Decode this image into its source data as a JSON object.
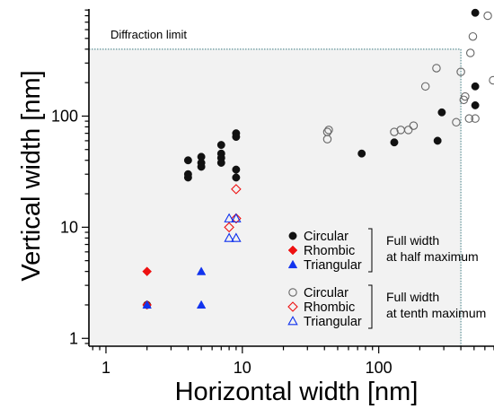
{
  "chart_data": {
    "type": "scatter",
    "xlabel": "Horizontal width [nm]",
    "ylabel": "Vertical width [nm]",
    "xscale": "log",
    "yscale": "log",
    "xlim": [
      0.75,
      700
    ],
    "ylim": [
      0.85,
      920
    ],
    "x_ticks": [
      1,
      10,
      100
    ],
    "x_tick_labels": [
      "1",
      "10",
      "100"
    ],
    "y_ticks": [
      1,
      10,
      100
    ],
    "y_tick_labels": [
      "1",
      "10",
      "100"
    ],
    "grid": false,
    "annotation": {
      "text": "Diffraction limit",
      "x_limit": 400,
      "y_limit": 400
    },
    "legend_groups": [
      {
        "label_line1": "Full width",
        "label_line2": "at half maximum"
      },
      {
        "label_line1": "Full width",
        "label_line2": "at tenth maximum"
      }
    ],
    "series": [
      {
        "name": "Circular",
        "group": 0,
        "marker": "circle",
        "filled": true,
        "color": "#111111",
        "points": [
          [
            2,
            2
          ],
          [
            4,
            40
          ],
          [
            4,
            30
          ],
          [
            4,
            28
          ],
          [
            5,
            43
          ],
          [
            5,
            38
          ],
          [
            5,
            35
          ],
          [
            7,
            55
          ],
          [
            7,
            46
          ],
          [
            7,
            42
          ],
          [
            7,
            38
          ],
          [
            9,
            70
          ],
          [
            9,
            65
          ],
          [
            9,
            33
          ],
          [
            9,
            28
          ],
          [
            75,
            46
          ],
          [
            130,
            58
          ],
          [
            270,
            60
          ],
          [
            290,
            108
          ],
          [
            510,
            185
          ],
          [
            510,
            125
          ],
          [
            510,
            850
          ]
        ]
      },
      {
        "name": "Rhombic",
        "group": 0,
        "marker": "diamond",
        "filled": true,
        "color": "#ee1111",
        "points": [
          [
            2,
            4
          ],
          [
            2,
            2
          ]
        ]
      },
      {
        "name": "Triangular",
        "group": 0,
        "marker": "triangle",
        "filled": true,
        "color": "#1133ee",
        "points": [
          [
            5,
            4
          ],
          [
            5,
            2
          ],
          [
            2,
            2
          ]
        ]
      },
      {
        "name": "Circular",
        "group": 1,
        "marker": "circle",
        "filled": false,
        "color": "#666666",
        "points": [
          [
            42,
            72
          ],
          [
            43,
            75
          ],
          [
            42,
            62
          ],
          [
            130,
            72
          ],
          [
            145,
            75
          ],
          [
            165,
            75
          ],
          [
            180,
            82
          ],
          [
            220,
            185
          ],
          [
            265,
            270
          ],
          [
            370,
            88
          ],
          [
            400,
            250
          ],
          [
            430,
            150
          ],
          [
            420,
            140
          ],
          [
            460,
            95
          ],
          [
            470,
            370
          ],
          [
            490,
            520
          ],
          [
            510,
            95
          ],
          [
            630,
            800
          ],
          [
            690,
            210
          ]
        ]
      },
      {
        "name": "Rhombic",
        "group": 1,
        "marker": "diamond",
        "filled": false,
        "color": "#ee1111",
        "points": [
          [
            9,
            22
          ],
          [
            8,
            10
          ],
          [
            9,
            12
          ]
        ]
      },
      {
        "name": "Triangular",
        "group": 1,
        "marker": "triangle",
        "filled": false,
        "color": "#1133ee",
        "points": [
          [
            8,
            12
          ],
          [
            9,
            12
          ],
          [
            8,
            8
          ],
          [
            9,
            8
          ]
        ]
      }
    ]
  }
}
